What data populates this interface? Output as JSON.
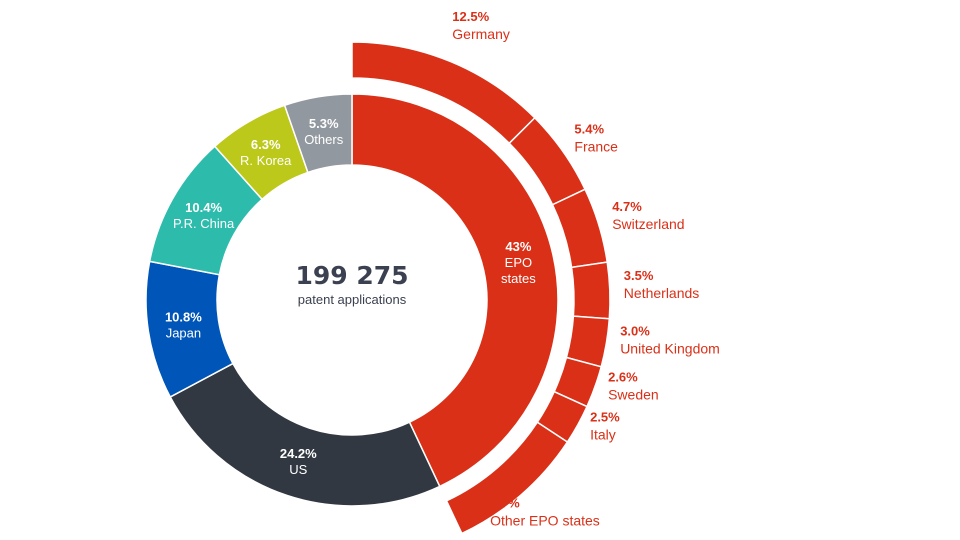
{
  "center": {
    "total": "199 275",
    "subtitle": "patent applications"
  },
  "colors": {
    "epo": "#da3018",
    "us": "#323842",
    "japan": "#0055b8",
    "china": "#2dbcac",
    "korea": "#bcc81a",
    "others": "#92989f"
  },
  "chart_data": {
    "type": "donut",
    "segments": [
      {
        "key": "epo",
        "value": 43,
        "label_pct": "43%",
        "label_name": "EPO states",
        "label_lines": [
          "EPO",
          "states"
        ]
      },
      {
        "key": "us",
        "value": 24.2,
        "label_pct": "24.2%",
        "label_name": "US"
      },
      {
        "key": "japan",
        "value": 10.8,
        "label_pct": "10.8%",
        "label_name": "Japan"
      },
      {
        "key": "china",
        "value": 10.4,
        "label_pct": "10.4%",
        "label_name": "P.R. China"
      },
      {
        "key": "korea",
        "value": 6.3,
        "label_pct": "6.3%",
        "label_name": "R. Korea"
      },
      {
        "key": "others",
        "value": 5.3,
        "label_pct": "5.3%",
        "label_name": "Others"
      }
    ],
    "breakdown_of": "epo",
    "breakdown": [
      {
        "value": 12.5,
        "label_pct": "12.5%",
        "label_name": "Germany"
      },
      {
        "value": 5.4,
        "label_pct": "5.4%",
        "label_name": "France"
      },
      {
        "value": 4.7,
        "label_pct": "4.7%",
        "label_name": "Switzerland"
      },
      {
        "value": 3.5,
        "label_pct": "3.5%",
        "label_name": "Netherlands"
      },
      {
        "value": 3.0,
        "label_pct": "3.0%",
        "label_name": "United Kingdom"
      },
      {
        "value": 2.6,
        "label_pct": "2.6%",
        "label_name": "Sweden"
      },
      {
        "value": 2.5,
        "label_pct": "2.5%",
        "label_name": "Italy"
      },
      {
        "value": 8.7,
        "label_pct": "8.7%",
        "label_name": "Other EPO states"
      }
    ]
  }
}
